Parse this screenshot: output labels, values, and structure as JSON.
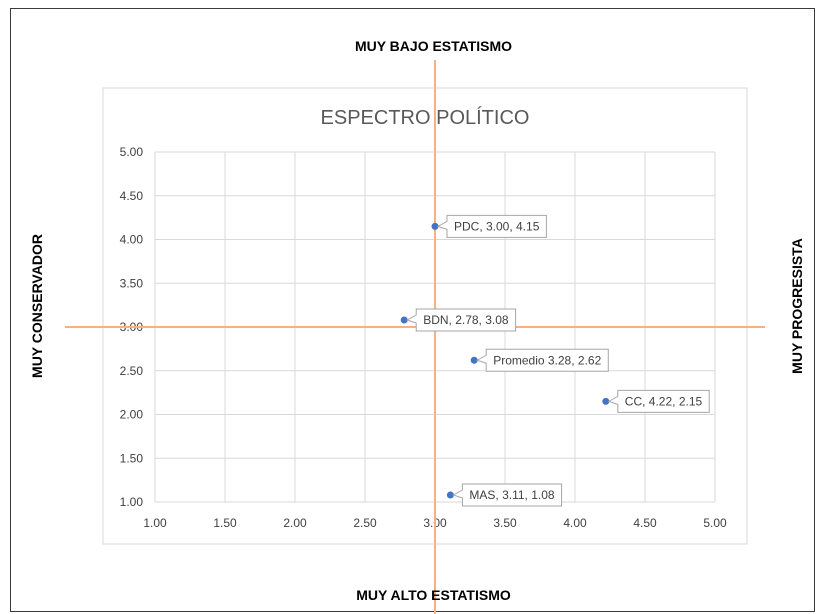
{
  "labels": {
    "top": "MUY BAJO ESTATISMO",
    "bottom": "MUY ALTO ESTATISMO",
    "left": "MUY CONSERVADOR",
    "right": "MUY PROGRESISTA"
  },
  "colors": {
    "point": "#4472c4",
    "cross_lines": "#f4b183",
    "grid": "#d9d9d9",
    "title": "#595959",
    "tick": "#404040"
  },
  "chart_data": {
    "type": "scatter",
    "title": "ESPECTRO POLÍTICO",
    "xlim": [
      1.0,
      5.0
    ],
    "ylim": [
      1.0,
      5.0
    ],
    "x_ticks": [
      "1.00",
      "1.50",
      "2.00",
      "2.50",
      "3.00",
      "3.50",
      "4.00",
      "4.50",
      "5.00"
    ],
    "y_ticks": [
      "1.00",
      "1.50",
      "2.00",
      "2.50",
      "3.00",
      "3.50",
      "4.00",
      "4.50",
      "5.00"
    ],
    "grid": true,
    "reference_lines": {
      "x": 3.0,
      "y": 3.0
    },
    "points": [
      {
        "x": 3.0,
        "y": 4.15,
        "label": "PDC, 3.00, 4.15"
      },
      {
        "x": 2.78,
        "y": 3.08,
        "label": "BDN, 2.78, 3.08"
      },
      {
        "x": 3.28,
        "y": 2.62,
        "label": "Promedio 3.28, 2.62"
      },
      {
        "x": 4.22,
        "y": 2.15,
        "label": "CC, 4.22, 2.15"
      },
      {
        "x": 3.11,
        "y": 1.08,
        "label": "MAS, 3.11, 1.08"
      }
    ]
  }
}
